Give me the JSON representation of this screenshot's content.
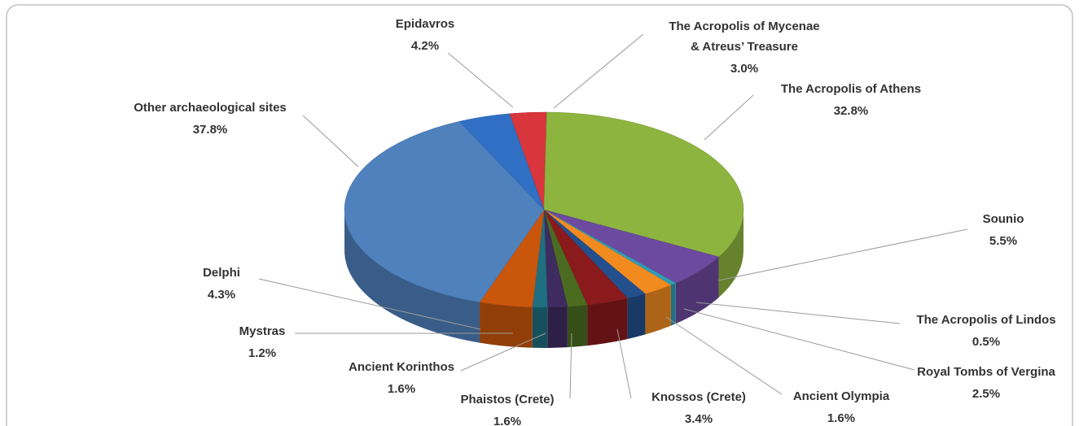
{
  "chart_data": {
    "type": "pie",
    "categories": [
      [
        "The Acropolis of Mycenae",
        "& Atreus’ Treasure"
      ],
      "The Acropolis of Athens",
      "Sounio",
      "The Acropolis of Lindos",
      "Royal Tombs of Vergina",
      "Ancient Olympia",
      "Knossos (Crete)",
      "Phaistos (Crete)",
      "Ancient Korinthos",
      "Mystras",
      "Delphi",
      "Other archaeological  sites",
      "Epidavros"
    ],
    "values": [
      3.0,
      32.8,
      5.5,
      0.5,
      2.5,
      1.6,
      3.4,
      1.6,
      1.6,
      1.2,
      4.3,
      37.8,
      4.2
    ],
    "value_labels": [
      "3.0%",
      "32.8%",
      "5.5%",
      "0.5%",
      "2.5%",
      "1.6%",
      "3.4%",
      "1.6%",
      "1.6%",
      "1.2%",
      "4.3%",
      "37.8%",
      "4.2%"
    ],
    "colors": [
      "#d8353d",
      "#8db43f",
      "#6c4a9f",
      "#2f9cb6",
      "#f28b1f",
      "#234f8d",
      "#8a1a1c",
      "#4b6c20",
      "#3e2b60",
      "#1f6f81",
      "#c9560b",
      "#4f81bd",
      "#2f6fc4"
    ]
  }
}
